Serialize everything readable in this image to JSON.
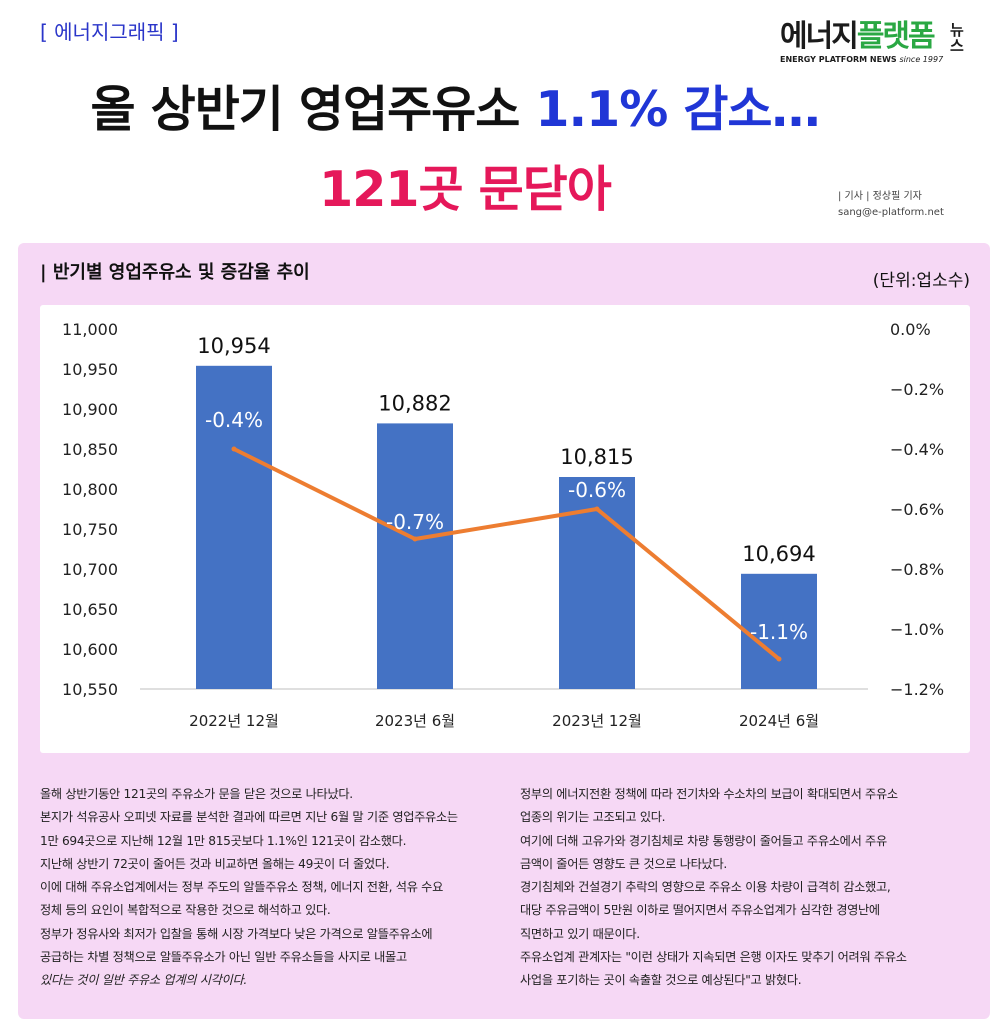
{
  "header": {
    "section_tag": "[ 에너지그래픽 ]",
    "logo": {
      "part1": "에너지",
      "part2": "플랫폼",
      "news": "뉴스",
      "subtitle": "ENERGY PLATFORM NEWS",
      "since": "since 1997"
    },
    "headline_part1": "올 상반기 영업주유소 ",
    "headline_part2": "1.1% 감소…",
    "headline_line2": "121곳 문닫아",
    "byline_line1": "| 기사 | 정상필 기자",
    "byline_line2": "sang@e-platform.net"
  },
  "colors": {
    "bar": "#4472c4",
    "line": "#ed7d31",
    "panel": "#f6d8f5",
    "headline_blue": "#2036d6",
    "headline_red": "#e5185a"
  },
  "chart_data": {
    "type": "bar",
    "title": "| 반기별 영업주유소 및 증감율 추이",
    "unit_label": "(단위:업소수)",
    "categories": [
      "2022년 12월",
      "2023년 6월",
      "2023년 12월",
      "2024년 6월"
    ],
    "series": [
      {
        "name": "영업주유소",
        "type": "bar",
        "axis": "left",
        "values": [
          10954,
          10882,
          10815,
          10694
        ],
        "labels": [
          "10,954",
          "10,882",
          "10,815",
          "10,694"
        ]
      },
      {
        "name": "증감율",
        "type": "line",
        "axis": "right",
        "values": [
          -0.4,
          -0.7,
          -0.6,
          -1.1
        ],
        "labels": [
          "-0.4%",
          "-0.7%",
          "-0.6%",
          "-1.1%"
        ]
      }
    ],
    "y_left": {
      "min": 10550,
      "max": 11000,
      "ticks": [
        "11,000",
        "10,950",
        "10,900",
        "10,850",
        "10,800",
        "10,750",
        "10,700",
        "10,650",
        "10,600",
        "10,550"
      ]
    },
    "y_right": {
      "min": -1.2,
      "max": 0.0,
      "ticks": [
        "0.0%",
        "−0.2%",
        "−0.4%",
        "−0.6%",
        "−0.8%",
        "−1.0%",
        "−1.2%"
      ]
    }
  },
  "article": {
    "left": [
      "올해 상반기동안 121곳의 주유소가 문을 닫은 것으로 나타났다.",
      "본지가 석유공사 오피넷 자료를 분석한 결과에 따르면 지난 6월 말 기준 영업주유소는",
      "1만 694곳으로 지난해 12월 1만 815곳보다 1.1%인 121곳이 감소했다.",
      "지난해 상반기 72곳이 줄어든 것과 비교하면 올해는 49곳이 더 줄었다.",
      "이에 대해 주유소업계에서는 정부 주도의 알뜰주유소 정책, 에너지 전환, 석유 수요",
      "정체 등의 요인이 복합적으로 작용한 것으로 해석하고 있다.",
      "정부가 정유사와 최저가 입찰을 통해 시장 가격보다 낮은 가격으로 알뜰주유소에",
      "공급하는 차별 정책으로 알뜰주유소가 아닌 일반 주유소들을 사지로 내몰고",
      "있다는 것이 일반 주유소 업계의 시각이다."
    ],
    "right": [
      "정부의 에너지전환 정책에 따라 전기차와 수소차의 보급이 확대되면서 주유소",
      "업종의 위기는 고조되고 있다.",
      "여기에 더해 고유가와 경기침체로 차량 통행량이 줄어들고 주유소에서 주유",
      "금액이 줄어든 영향도 큰 것으로 나타났다.",
      "경기침체와 건설경기 추락의 영향으로 주유소 이용 차량이 급격히 감소했고,",
      "대당 주유금액이 5만원 이하로 떨어지면서 주유소업계가 심각한 경영난에",
      "직면하고 있기 때문이다.",
      "주유소업계 관계자는 \"이런 상태가 지속되면 은행 이자도 맞추기 어려워 주유소",
      "사업을 포기하는 곳이 속출할 것으로 예상된다\"고 밝혔다."
    ]
  }
}
